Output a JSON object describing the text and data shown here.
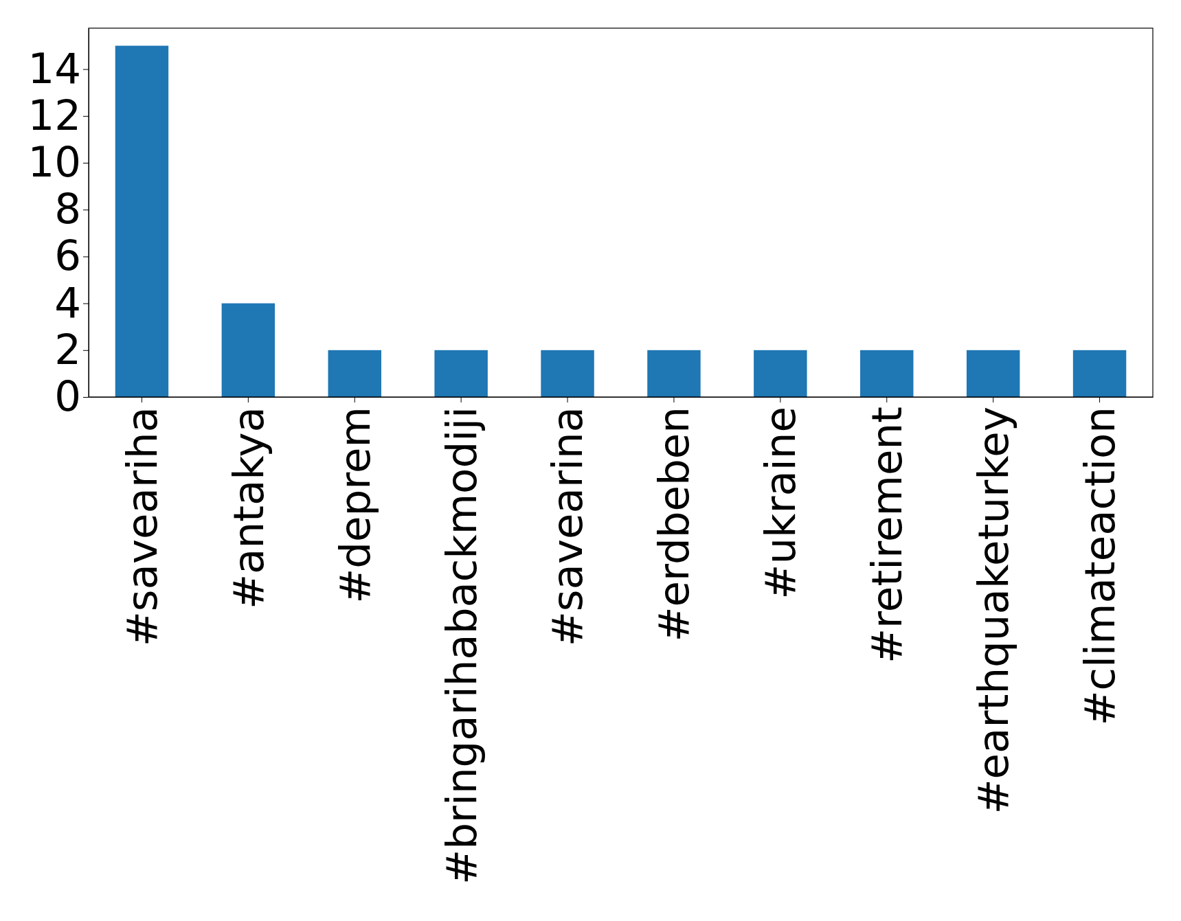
{
  "chart_data": {
    "type": "bar",
    "categories": [
      "#saveariha",
      "#antakya",
      "#deprem",
      "#bringarihabackmodiji",
      "#savearina",
      "#erdbeben",
      "#ukraine",
      "#retirement",
      "#earthquaketurkey",
      "#climateaction"
    ],
    "values": [
      15,
      4,
      2,
      2,
      2,
      2,
      2,
      2,
      2,
      2
    ],
    "color": "#1f77b4",
    "ylim": [
      0,
      15.75
    ],
    "yticks": [
      0,
      2,
      4,
      6,
      8,
      10,
      12,
      14
    ],
    "grid": false
  }
}
